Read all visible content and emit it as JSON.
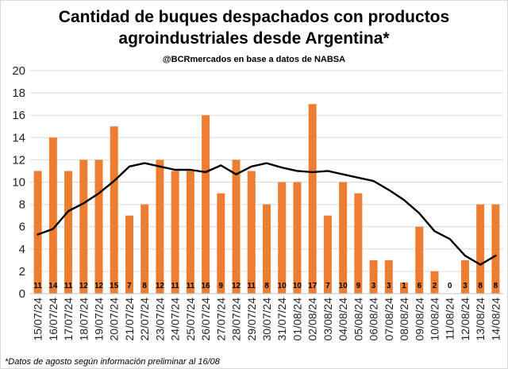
{
  "chart_data": {
    "type": "bar",
    "title_line1": "Cantidad de buques despachados con productos",
    "title_line2": "agroindustriales desde Argentina*",
    "subtitle": "@BCRmercados en base a datos de NABSA",
    "footnote": "*Datos de agosto según información preliminar al 16/08",
    "categories": [
      "15/07/24",
      "16/07/24",
      "17/07/24",
      "18/07/24",
      "19/07/24",
      "20/07/24",
      "21/07/24",
      "22/07/24",
      "23/07/24",
      "24/07/24",
      "25/07/24",
      "26/07/24",
      "27/07/24",
      "28/07/24",
      "29/07/24",
      "30/07/24",
      "31/07/24",
      "01/08/24",
      "02/08/24",
      "03/08/24",
      "04/08/24",
      "05/08/24",
      "06/08/24",
      "07/08/24",
      "08/08/24",
      "09/08/24",
      "10/08/24",
      "11/08/24",
      "12/08/24",
      "13/08/24",
      "14/08/24"
    ],
    "values": [
      11,
      14,
      11,
      12,
      12,
      15,
      7,
      8,
      12,
      11,
      11,
      16,
      9,
      12,
      11,
      8,
      10,
      10,
      17,
      7,
      10,
      9,
      3,
      3,
      1,
      6,
      2,
      0,
      3,
      8,
      8
    ],
    "moving_average": [
      5.3,
      5.8,
      7.4,
      8.1,
      9.0,
      10.1,
      11.4,
      11.7,
      11.4,
      11.1,
      11.1,
      10.9,
      11.5,
      10.7,
      11.4,
      11.7,
      11.3,
      11.0,
      10.9,
      11.0,
      10.7,
      10.4,
      10.1,
      9.3,
      8.4,
      7.2,
      5.6,
      4.9,
      3.4,
      2.6,
      3.4
    ],
    "ylim": [
      0,
      20
    ],
    "yticks": [
      0,
      2,
      4,
      6,
      8,
      10,
      12,
      14,
      16,
      18,
      20
    ],
    "grid": true,
    "bar_color": "#ED7D31",
    "line_color": "#000000"
  }
}
